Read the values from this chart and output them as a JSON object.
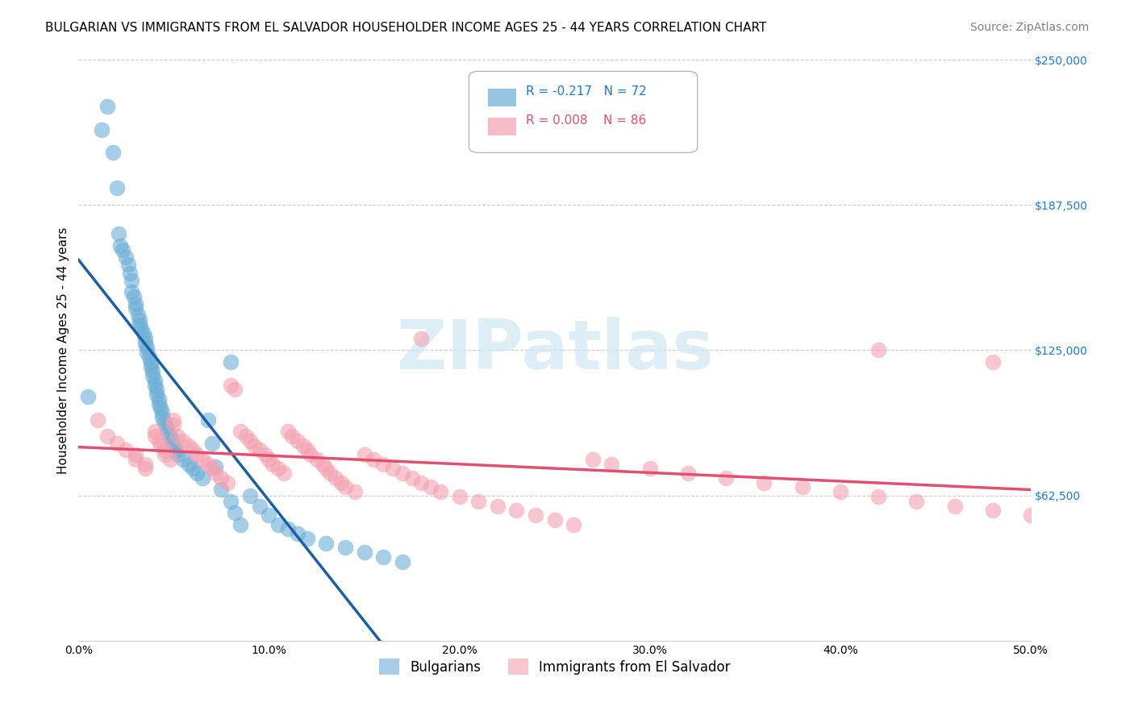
{
  "title": "BULGARIAN VS IMMIGRANTS FROM EL SALVADOR HOUSEHOLDER INCOME AGES 25 - 44 YEARS CORRELATION CHART",
  "source": "Source: ZipAtlas.com",
  "ylabel": "Householder Income Ages 25 - 44 years",
  "xlabel": "",
  "xlim": [
    0.0,
    0.5
  ],
  "ylim": [
    0,
    250000
  ],
  "xtick_labels": [
    "0.0%",
    "10.0%",
    "20.0%",
    "30.0%",
    "40.0%",
    "50.0%"
  ],
  "xtick_vals": [
    0.0,
    0.1,
    0.2,
    0.3,
    0.4,
    0.5
  ],
  "ytick_labels": [
    "$62,500",
    "$125,000",
    "$187,500",
    "$250,000"
  ],
  "ytick_vals": [
    62500,
    125000,
    187500,
    250000
  ],
  "bg_color": "#ffffff",
  "plot_bg_color": "#ffffff",
  "grid_color": "#cccccc",
  "watermark": "ZIPatlas",
  "watermark_color": "#d0e8f5",
  "blue_color": "#6baed6",
  "pink_color": "#f4a0b0",
  "blue_line_color": "#1a5fa8",
  "pink_line_color": "#e05070",
  "blue_dashed_color": "#a0c0e0",
  "legend_R_blue": "R = -0.217",
  "legend_N_blue": "N = 72",
  "legend_R_pink": "R = 0.008",
  "legend_N_pink": "N = 86",
  "legend_label_blue": "Bulgarians",
  "legend_label_pink": "Immigrants from El Salvador",
  "blue_scatter_x": [
    0.005,
    0.012,
    0.015,
    0.018,
    0.02,
    0.021,
    0.022,
    0.023,
    0.025,
    0.026,
    0.027,
    0.028,
    0.028,
    0.029,
    0.03,
    0.03,
    0.031,
    0.032,
    0.032,
    0.033,
    0.034,
    0.035,
    0.035,
    0.036,
    0.036,
    0.037,
    0.038,
    0.038,
    0.039,
    0.039,
    0.04,
    0.04,
    0.041,
    0.041,
    0.042,
    0.042,
    0.043,
    0.044,
    0.044,
    0.045,
    0.046,
    0.047,
    0.048,
    0.049,
    0.05,
    0.051,
    0.052,
    0.055,
    0.058,
    0.06,
    0.062,
    0.065,
    0.068,
    0.07,
    0.072,
    0.075,
    0.08,
    0.082,
    0.085,
    0.09,
    0.095,
    0.1,
    0.105,
    0.11,
    0.115,
    0.12,
    0.13,
    0.14,
    0.15,
    0.16,
    0.17,
    0.08
  ],
  "blue_scatter_y": [
    105000,
    220000,
    230000,
    210000,
    195000,
    175000,
    170000,
    168000,
    165000,
    162000,
    158000,
    155000,
    150000,
    148000,
    145000,
    143000,
    140000,
    138000,
    136000,
    134000,
    132000,
    130000,
    128000,
    126000,
    124000,
    122000,
    120000,
    118000,
    116000,
    114000,
    112000,
    110000,
    108000,
    106000,
    104000,
    102000,
    100000,
    98000,
    96000,
    94000,
    92000,
    90000,
    88000,
    86000,
    84000,
    82000,
    80000,
    78000,
    76000,
    74000,
    72000,
    70000,
    95000,
    85000,
    75000,
    65000,
    60000,
    55000,
    50000,
    62500,
    58000,
    54000,
    50000,
    48000,
    46000,
    44000,
    42000,
    40000,
    38000,
    36000,
    34000,
    120000
  ],
  "pink_scatter_x": [
    0.01,
    0.015,
    0.02,
    0.025,
    0.03,
    0.03,
    0.035,
    0.035,
    0.04,
    0.04,
    0.042,
    0.043,
    0.045,
    0.045,
    0.048,
    0.05,
    0.05,
    0.052,
    0.055,
    0.058,
    0.06,
    0.062,
    0.065,
    0.068,
    0.07,
    0.072,
    0.075,
    0.078,
    0.08,
    0.082,
    0.085,
    0.088,
    0.09,
    0.092,
    0.095,
    0.098,
    0.1,
    0.102,
    0.105,
    0.108,
    0.11,
    0.112,
    0.115,
    0.118,
    0.12,
    0.122,
    0.125,
    0.128,
    0.13,
    0.132,
    0.135,
    0.138,
    0.14,
    0.145,
    0.15,
    0.155,
    0.16,
    0.165,
    0.17,
    0.175,
    0.18,
    0.185,
    0.19,
    0.2,
    0.21,
    0.22,
    0.23,
    0.24,
    0.25,
    0.26,
    0.27,
    0.28,
    0.3,
    0.32,
    0.34,
    0.36,
    0.38,
    0.4,
    0.42,
    0.44,
    0.46,
    0.48,
    0.5,
    0.18,
    0.42,
    0.48
  ],
  "pink_scatter_y": [
    95000,
    88000,
    85000,
    82000,
    80000,
    78000,
    76000,
    74000,
    90000,
    88000,
    86000,
    84000,
    82000,
    80000,
    78000,
    95000,
    93000,
    88000,
    86000,
    84000,
    82000,
    80000,
    78000,
    76000,
    74000,
    72000,
    70000,
    68000,
    110000,
    108000,
    90000,
    88000,
    86000,
    84000,
    82000,
    80000,
    78000,
    76000,
    74000,
    72000,
    90000,
    88000,
    86000,
    84000,
    82000,
    80000,
    78000,
    76000,
    74000,
    72000,
    70000,
    68000,
    66000,
    64000,
    80000,
    78000,
    76000,
    74000,
    72000,
    70000,
    68000,
    66000,
    64000,
    62000,
    60000,
    58000,
    56000,
    54000,
    52000,
    50000,
    78000,
    76000,
    74000,
    72000,
    70000,
    68000,
    66000,
    64000,
    62000,
    60000,
    58000,
    56000,
    54000,
    130000,
    125000,
    120000
  ],
  "title_fontsize": 11,
  "source_fontsize": 10,
  "axis_label_fontsize": 11,
  "tick_fontsize": 10,
  "legend_fontsize": 11
}
